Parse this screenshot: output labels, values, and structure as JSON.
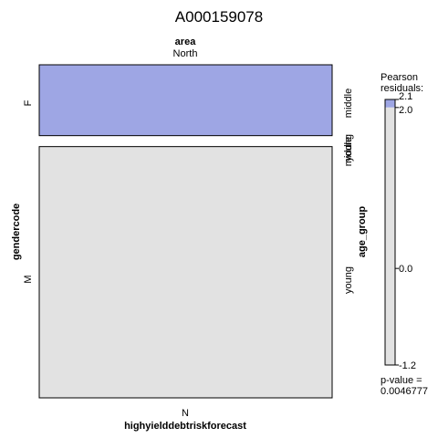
{
  "chart_data": {
    "type": "mosaic",
    "title": "A000159078",
    "top_variable": "area",
    "top_level": "North",
    "left_variable": "gendercode",
    "left_levels": [
      "F",
      "M"
    ],
    "right_variable": "age_group",
    "right_levels": [
      "middle",
      "middle",
      "young",
      "young"
    ],
    "bottom_variable": "highyielddebtriskforecast",
    "bottom_level": "N",
    "cells": [
      {
        "gendercode": "F",
        "age_group": "middle",
        "area": "North",
        "highyielddebtriskforecast": "N",
        "proportion": 0.22,
        "residual": 2.1,
        "color": "#9ea6e4"
      },
      {
        "gendercode": "F",
        "age_group": "young",
        "area": "North",
        "highyielddebtriskforecast": "N",
        "proportion": 0.0,
        "residual": 0.0,
        "color": "#e2e2e2"
      },
      {
        "gendercode": "M",
        "age_group": "middle",
        "area": "North",
        "highyielddebtriskforecast": "N",
        "proportion": 0.0,
        "residual": 0.0,
        "color": "#e2e2e2"
      },
      {
        "gendercode": "M",
        "age_group": "young",
        "area": "North",
        "highyielddebtriskforecast": "N",
        "proportion": 0.78,
        "residual": -1.2,
        "color": "#e2e2e2"
      }
    ],
    "legend": {
      "title_lines": [
        "Pearson",
        "residuals:"
      ],
      "ticks": [
        "2.1",
        "2.0",
        "0.0",
        "-1.2"
      ],
      "range": [
        -1.2,
        2.1
      ],
      "positive_threshold": 2.0,
      "positive_color": "#9ea6e4",
      "neutral_color": "#e2e2e2",
      "pvalue_lines": [
        "p-value =",
        "0.0046777"
      ]
    }
  }
}
